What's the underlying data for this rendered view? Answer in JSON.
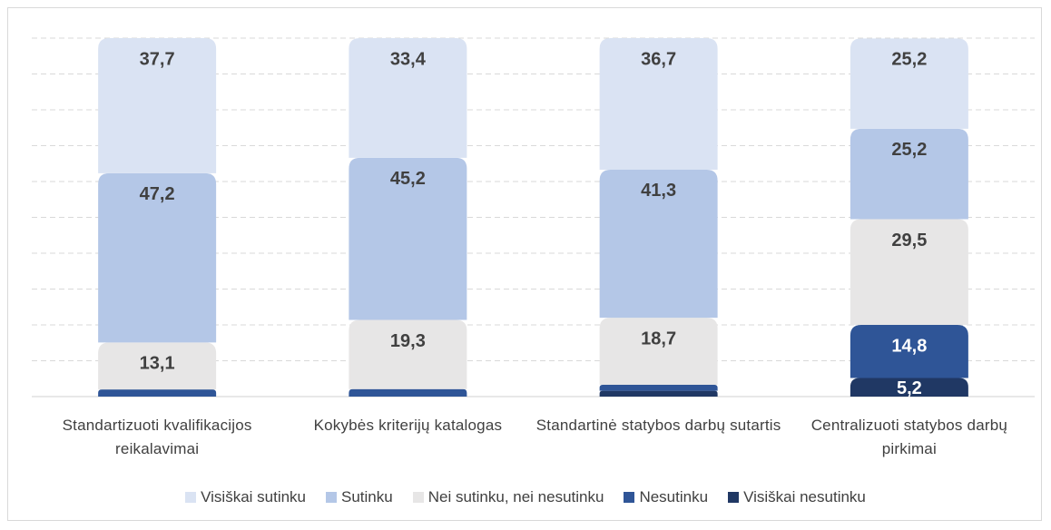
{
  "chart_data": {
    "type": "stacked_bar",
    "categories": [
      "Standartizuoti kvalifikacijos reikalavimai",
      "Kokybės kriterijų katalogas",
      "Standartinė statybos darbų sutartis",
      "Centralizuoti statybos darbų pirkimai"
    ],
    "series": [
      {
        "name": "Visiškai nesutinku",
        "color": "#203864",
        "values": [
          0,
          0,
          1.6,
          5.2
        ],
        "value_labels": [
          null,
          null,
          null,
          "5,2"
        ]
      },
      {
        "name": "Nesutinku",
        "color": "#2f5597",
        "values": [
          2.0,
          2.1,
          1.7,
          14.8
        ],
        "value_labels": [
          null,
          null,
          null,
          "14,8"
        ]
      },
      {
        "name": "Nei sutinku, nei nesutinku",
        "color": "#e7e6e6",
        "values": [
          13.1,
          19.3,
          18.7,
          29.5
        ],
        "value_labels": [
          "13,1",
          "19,3",
          "18,7",
          "29,5"
        ]
      },
      {
        "name": "Sutinku",
        "color": "#b4c7e7",
        "values": [
          47.2,
          45.2,
          41.3,
          25.2
        ],
        "value_labels": [
          "47,2",
          "45,2",
          "41,3",
          "25,2"
        ]
      },
      {
        "name": "Visiškai sutinku",
        "color": "#dae3f3",
        "values": [
          37.7,
          33.4,
          36.7,
          25.2
        ],
        "value_labels": [
          "37,7",
          "33,4",
          "36,7",
          "25,2"
        ]
      }
    ],
    "legend_order": [
      4,
      3,
      2,
      1,
      0
    ],
    "ylim": [
      0,
      100
    ],
    "yticks": [
      0,
      10,
      20,
      30,
      40,
      50,
      60,
      70,
      80,
      90,
      100
    ],
    "grid": true,
    "legend": "bottom"
  }
}
